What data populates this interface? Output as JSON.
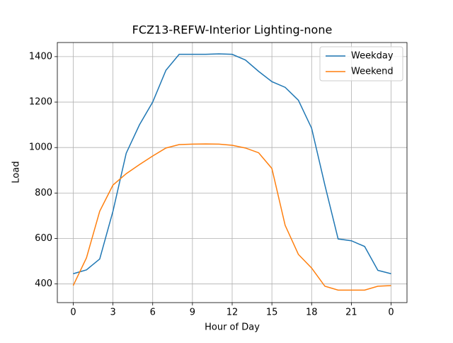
{
  "chart_data": {
    "type": "line",
    "title": "FCZ13-REFW-Interior Lighting-none",
    "x_label": "Hour of Day",
    "y_label": "Load",
    "x": [
      0,
      1,
      2,
      3,
      4,
      5,
      6,
      7,
      8,
      9,
      10,
      11,
      12,
      13,
      14,
      15,
      16,
      17,
      18,
      19,
      20,
      21,
      22,
      23,
      24
    ],
    "series": [
      {
        "name": "Weekday",
        "color": "#1f77b4",
        "values": [
          445,
          462,
          510,
          720,
          975,
          1100,
          1200,
          1340,
          1410,
          1410,
          1410,
          1412,
          1410,
          1385,
          1335,
          1290,
          1265,
          1208,
          1085,
          835,
          598,
          590,
          565,
          460,
          445
        ]
      },
      {
        "name": "Weekend",
        "color": "#ff7f0e",
        "values": [
          393,
          515,
          720,
          835,
          885,
          925,
          963,
          998,
          1013,
          1015,
          1016,
          1015,
          1010,
          998,
          977,
          908,
          658,
          530,
          470,
          390,
          373,
          373,
          373,
          390,
          393
        ]
      }
    ],
    "xlim": [
      -1.2,
      25.2
    ],
    "xticks": [
      0,
      3,
      6,
      9,
      12,
      15,
      18,
      21,
      {
        "value": 24,
        "label": "0"
      }
    ],
    "ylim": [
      318,
      1462
    ],
    "yticks": [
      400,
      600,
      800,
      1000,
      1200,
      1400
    ],
    "grid": true,
    "legend": "upper right"
  }
}
